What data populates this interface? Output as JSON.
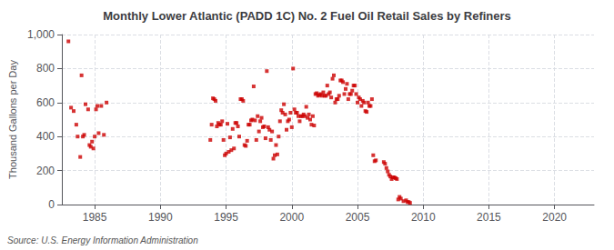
{
  "chart_data": {
    "type": "scatter",
    "title": "Monthly Lower Atlantic (PADD 1C) No. 2 Fuel Oil Retail Sales by Refiners",
    "ylabel": "Thousand Gallons per Day",
    "source": "Source: U.S. Energy Information Administration",
    "color": "#cc0000",
    "marker": "square",
    "grid": true,
    "xlim": [
      1982.5,
      2023
    ],
    "ylim": [
      0,
      1000
    ],
    "xticks": [
      1985,
      1990,
      1995,
      2000,
      2005,
      2010,
      2015,
      2020
    ],
    "yticks": [
      0,
      200,
      400,
      600,
      800,
      {
        "value": 1000,
        "label": "1,000"
      }
    ],
    "x": [
      1983.0,
      1983.2,
      1983.4,
      1983.6,
      1983.7,
      1983.9,
      1984.0,
      1984.1,
      1984.2,
      1984.3,
      1984.5,
      1984.6,
      1984.7,
      1984.8,
      1984.9,
      1985.0,
      1985.1,
      1985.2,
      1985.3,
      1985.5,
      1985.7,
      1985.9,
      1993.8,
      1993.9,
      1994.0,
      1994.1,
      1994.2,
      1994.3,
      1994.4,
      1994.5,
      1994.6,
      1994.7,
      1994.8,
      1994.9,
      1995.0,
      1995.1,
      1995.2,
      1995.3,
      1995.4,
      1995.5,
      1995.6,
      1995.7,
      1995.8,
      1995.9,
      1996.0,
      1996.1,
      1996.2,
      1996.3,
      1996.4,
      1996.5,
      1996.6,
      1996.7,
      1996.8,
      1996.9,
      1997.0,
      1997.1,
      1997.2,
      1997.3,
      1997.4,
      1997.5,
      1997.6,
      1997.7,
      1997.8,
      1997.9,
      1998.0,
      1998.1,
      1998.2,
      1998.3,
      1998.4,
      1998.5,
      1998.6,
      1998.7,
      1998.8,
      1998.9,
      1999.0,
      1999.1,
      1999.2,
      1999.3,
      1999.4,
      1999.5,
      1999.6,
      1999.7,
      1999.8,
      1999.9,
      2000.0,
      2000.1,
      2000.2,
      2000.3,
      2000.4,
      2000.5,
      2000.6,
      2000.7,
      2000.8,
      2000.9,
      2001.0,
      2001.1,
      2001.2,
      2001.3,
      2001.4,
      2001.5,
      2001.6,
      2001.7,
      2001.8,
      2001.9,
      2002.0,
      2002.1,
      2002.2,
      2002.3,
      2002.4,
      2002.5,
      2002.6,
      2002.7,
      2002.8,
      2002.9,
      2003.0,
      2003.1,
      2003.2,
      2003.3,
      2003.4,
      2003.5,
      2003.6,
      2003.7,
      2003.8,
      2003.9,
      2004.0,
      2004.1,
      2004.2,
      2004.3,
      2004.4,
      2004.5,
      2004.6,
      2004.7,
      2004.8,
      2004.9,
      2005.0,
      2005.1,
      2005.2,
      2005.3,
      2005.4,
      2005.5,
      2005.6,
      2005.7,
      2005.8,
      2005.9,
      2006.0,
      2006.1,
      2006.2,
      2006.3,
      2006.4,
      2007.0,
      2007.1,
      2007.2,
      2007.3,
      2007.4,
      2007.5,
      2007.6,
      2007.7,
      2007.8,
      2007.9,
      2008.0,
      2008.1,
      2008.2,
      2008.3,
      2008.5,
      2008.7,
      2008.8,
      2008.9,
      2009.0
    ],
    "values": [
      960,
      570,
      550,
      470,
      400,
      280,
      760,
      400,
      410,
      590,
      560,
      350,
      340,
      370,
      330,
      400,
      560,
      580,
      420,
      580,
      410,
      600,
      380,
      470,
      625,
      620,
      610,
      460,
      480,
      470,
      470,
      490,
      380,
      290,
      300,
      475,
      310,
      395,
      320,
      445,
      330,
      480,
      480,
      460,
      400,
      620,
      620,
      610,
      350,
      345,
      375,
      470,
      470,
      495,
      500,
      695,
      495,
      380,
      520,
      430,
      490,
      510,
      455,
      460,
      390,
      785,
      455,
      440,
      380,
      430,
      270,
      290,
      350,
      295,
      400,
      490,
      555,
      540,
      590,
      530,
      440,
      490,
      500,
      540,
      455,
      800,
      560,
      540,
      540,
      520,
      490,
      520,
      520,
      530,
      520,
      575,
      510,
      530,
      500,
      470,
      520,
      465,
      650,
      655,
      640,
      645,
      650,
      640,
      660,
      640,
      640,
      700,
      650,
      660,
      630,
      740,
      760,
      600,
      620,
      620,
      640,
      730,
      730,
      720,
      650,
      680,
      710,
      620,
      650,
      650,
      670,
      700,
      700,
      650,
      600,
      630,
      620,
      580,
      610,
      600,
      550,
      545,
      600,
      580,
      580,
      620,
      290,
      255,
      260,
      250,
      240,
      215,
      195,
      175,
      165,
      150,
      160,
      160,
      155,
      150,
      30,
      45,
      35,
      20,
      25,
      15,
      15,
      10
    ]
  }
}
